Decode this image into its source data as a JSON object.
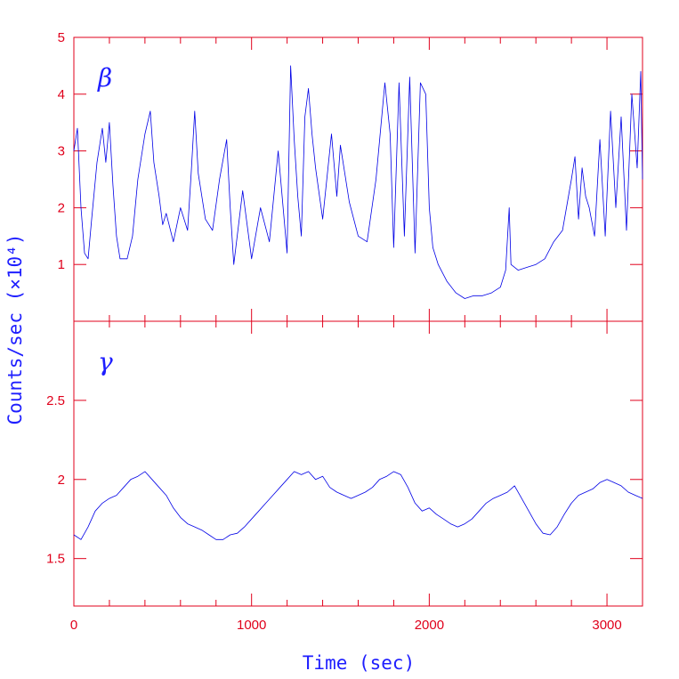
{
  "chart_data": {
    "type": "line",
    "xlabel": "Time (sec)",
    "ylabel": "Counts/sec (×10⁴)",
    "xlim": [
      0,
      3200
    ],
    "x_ticks": [
      0,
      1000,
      2000,
      3000
    ],
    "x_tick_labels": [
      "0",
      "1000",
      "2000",
      "3000"
    ],
    "grid": false,
    "colors": {
      "axes": "#e0001b",
      "series": "#0000e6",
      "labels": "#1e1eff"
    },
    "panels": [
      {
        "label": "β",
        "ylim": [
          0,
          5
        ],
        "y_ticks": [
          1,
          2,
          3,
          4,
          5
        ],
        "y_tick_labels": [
          "1",
          "2",
          "3",
          "4",
          "5"
        ],
        "series": {
          "x": [
            0,
            20,
            40,
            60,
            80,
            100,
            130,
            160,
            180,
            200,
            220,
            240,
            260,
            300,
            330,
            360,
            400,
            430,
            450,
            480,
            500,
            520,
            560,
            600,
            640,
            660,
            680,
            700,
            740,
            780,
            820,
            860,
            880,
            900,
            950,
            1000,
            1050,
            1100,
            1150,
            1200,
            1220,
            1240,
            1260,
            1280,
            1300,
            1320,
            1340,
            1360,
            1400,
            1450,
            1480,
            1500,
            1550,
            1600,
            1650,
            1700,
            1750,
            1780,
            1800,
            1830,
            1860,
            1890,
            1920,
            1950,
            1980,
            2000,
            2020,
            2050,
            2100,
            2150,
            2200,
            2250,
            2300,
            2350,
            2400,
            2430,
            2450,
            2460,
            2500,
            2550,
            2600,
            2650,
            2700,
            2750,
            2800,
            2820,
            2840,
            2860,
            2880,
            2900,
            2930,
            2960,
            2990,
            3020,
            3050,
            3080,
            3110,
            3140,
            3170,
            3190,
            3200
          ],
          "values": [
            3.0,
            3.4,
            2.0,
            1.2,
            1.1,
            1.8,
            2.8,
            3.4,
            2.8,
            3.5,
            2.4,
            1.5,
            1.1,
            1.1,
            1.5,
            2.5,
            3.3,
            3.7,
            2.8,
            2.2,
            1.7,
            1.9,
            1.4,
            2.0,
            1.6,
            2.6,
            3.7,
            2.6,
            1.8,
            1.6,
            2.5,
            3.2,
            2.0,
            1.0,
            2.3,
            1.1,
            2.0,
            1.4,
            3.0,
            1.2,
            4.5,
            3.2,
            2.2,
            1.5,
            3.6,
            4.1,
            3.3,
            2.7,
            1.8,
            3.3,
            2.2,
            3.1,
            2.1,
            1.5,
            1.4,
            2.5,
            4.2,
            3.3,
            1.3,
            4.2,
            1.5,
            4.3,
            1.2,
            4.2,
            4.0,
            2.0,
            1.3,
            1.0,
            0.7,
            0.5,
            0.4,
            0.45,
            0.45,
            0.5,
            0.6,
            0.9,
            2.0,
            1.0,
            0.9,
            0.95,
            1.0,
            1.1,
            1.4,
            1.6,
            2.5,
            2.9,
            1.8,
            2.7,
            2.2,
            2.0,
            1.5,
            3.2,
            1.5,
            3.7,
            2.0,
            3.6,
            1.6,
            4.0,
            2.7,
            4.4,
            2.5
          ]
        }
      },
      {
        "label": "γ",
        "ylim": [
          1.2,
          3.0
        ],
        "y_ticks": [
          1.5,
          2,
          2.5
        ],
        "y_tick_labels": [
          "1.5",
          "2",
          "2.5"
        ],
        "series": {
          "x": [
            0,
            40,
            80,
            120,
            160,
            200,
            240,
            280,
            320,
            360,
            400,
            440,
            480,
            520,
            560,
            600,
            640,
            680,
            720,
            760,
            800,
            840,
            880,
            920,
            960,
            1000,
            1040,
            1080,
            1120,
            1160,
            1200,
            1240,
            1280,
            1320,
            1360,
            1400,
            1440,
            1480,
            1520,
            1560,
            1600,
            1640,
            1680,
            1720,
            1760,
            1800,
            1840,
            1880,
            1920,
            1960,
            2000,
            2040,
            2080,
            2120,
            2160,
            2200,
            2240,
            2280,
            2320,
            2360,
            2400,
            2440,
            2480,
            2520,
            2560,
            2600,
            2640,
            2680,
            2720,
            2760,
            2800,
            2840,
            2880,
            2920,
            2960,
            3000,
            3040,
            3080,
            3120,
            3160,
            3200
          ],
          "values": [
            1.65,
            1.62,
            1.7,
            1.8,
            1.85,
            1.88,
            1.9,
            1.95,
            2.0,
            2.02,
            2.05,
            2.0,
            1.95,
            1.9,
            1.82,
            1.76,
            1.72,
            1.7,
            1.68,
            1.65,
            1.62,
            1.62,
            1.65,
            1.66,
            1.7,
            1.75,
            1.8,
            1.85,
            1.9,
            1.95,
            2.0,
            2.05,
            2.03,
            2.05,
            2.0,
            2.02,
            1.95,
            1.92,
            1.9,
            1.88,
            1.9,
            1.92,
            1.95,
            2.0,
            2.02,
            2.05,
            2.03,
            1.95,
            1.85,
            1.8,
            1.82,
            1.78,
            1.75,
            1.72,
            1.7,
            1.72,
            1.75,
            1.8,
            1.85,
            1.88,
            1.9,
            1.92,
            1.96,
            1.88,
            1.8,
            1.72,
            1.66,
            1.65,
            1.7,
            1.78,
            1.85,
            1.9,
            1.92,
            1.94,
            1.98,
            2.0,
            1.98,
            1.96,
            1.92,
            1.9,
            1.88
          ]
        }
      }
    ]
  }
}
